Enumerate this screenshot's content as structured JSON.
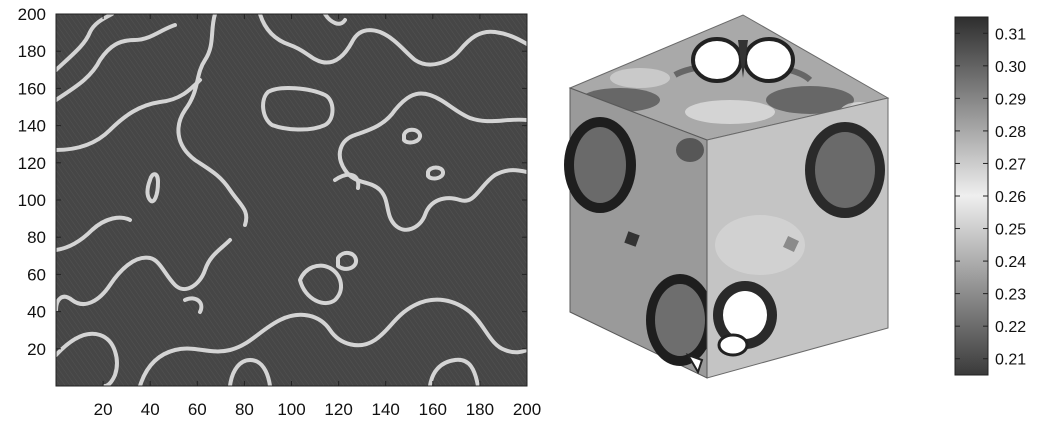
{
  "chart_data": [
    {
      "type": "heatmap",
      "description": "2D concentration field with interfacial contours",
      "xlim": [
        0,
        200
      ],
      "ylim": [
        0,
        200
      ],
      "x_ticks": [
        20,
        40,
        60,
        80,
        100,
        120,
        140,
        160,
        180,
        200
      ],
      "y_ticks": [
        20,
        40,
        60,
        80,
        100,
        120,
        140,
        160,
        180,
        200
      ],
      "xlabel": "",
      "ylabel": "",
      "title": "",
      "grid": false
    },
    {
      "type": "surface",
      "description": "3D cube with surface field shaded by colormap",
      "title": ""
    },
    {
      "type": "colorbar",
      "colormap": "gray",
      "range": [
        0.205,
        0.315
      ],
      "ticks": [
        0.21,
        0.22,
        0.23,
        0.24,
        0.25,
        0.26,
        0.27,
        0.28,
        0.29,
        0.3,
        0.31
      ],
      "tick_labels": [
        "0.21",
        "0.22",
        "0.23",
        "0.24",
        "0.25",
        "0.26",
        "0.27",
        "0.28",
        "0.29",
        "0.30",
        "0.31"
      ]
    }
  ],
  "colors": {
    "field_background": "#474747",
    "contour": "#d6d6d6",
    "axis": "#222222"
  }
}
